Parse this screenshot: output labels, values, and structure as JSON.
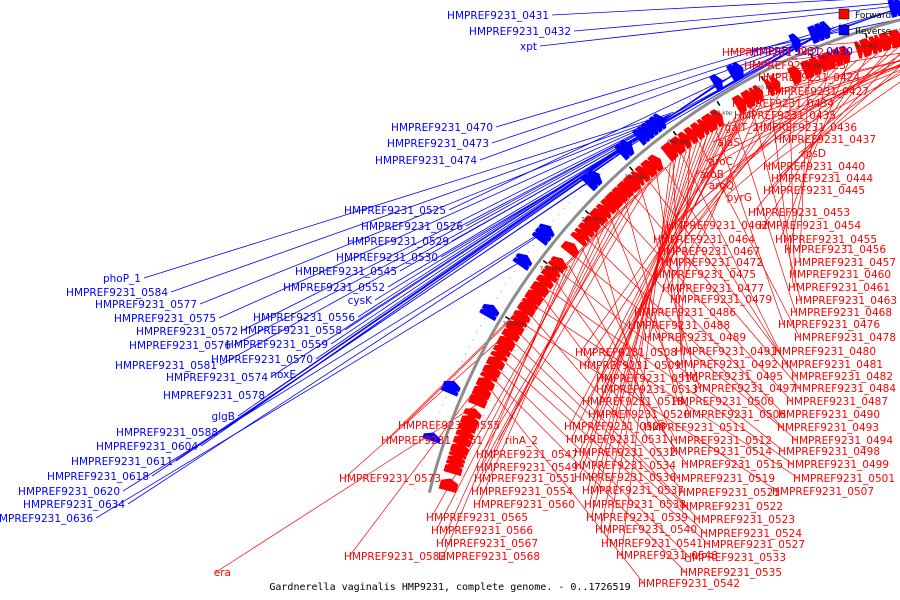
{
  "legend": {
    "forward": "Forward",
    "reverse": "Reverse",
    "forward_color": "#ff0000",
    "reverse_color": "#0000ff"
  },
  "caption": "Gardnerella vaginalis HMP9231, complete genome. - 0..1726519",
  "ticks": [
    "540 kbp",
    "560 kbp",
    "580 kbp",
    "600 kbp",
    "620 kbp",
    "640 kbp",
    "660 kbp",
    "680 kbp",
    "700 kbp",
    "720 kbp",
    "740 kbp",
    "760 kbp"
  ],
  "labels_reverse": [
    "HMPREF9231_0431",
    "HMPREF9231_0432",
    "xpt",
    "HMPREF9231_0430",
    "HMPREF9231_0470",
    "HMPREF9231_0473",
    "HMPREF9231_0474",
    "HMPREF9231_0525",
    "HMPREF9231_0526",
    "HMPREF9231_0529",
    "HMPREF9231_0530",
    "HMPREF9231_0545",
    "HMPREF9231_0552",
    "cysK",
    "HMPREF9231_0556",
    "HMPREF9231_0558",
    "HMPREF9231_0559",
    "HMPREF9231_0570",
    "noxE",
    "phoP_1",
    "HMPREF9231_0584",
    "HMPREF9231_0577",
    "HMPREF9231_0575",
    "HMPREF9231_0572",
    "HMPREF9231_0576",
    "HMPREF9231_0581",
    "HMPREF9231_0574",
    "HMPREF9231_0578",
    "glgB",
    "HMPREF9231_0588",
    "HMPREF9231_0604",
    "HMPREF9231_0611",
    "HMPREF9231_0618",
    "HMPREF9231_0620",
    "HMPREF9231_0634",
    "HMPREF9231_0636"
  ],
  "labels_forward_right": [
    "HMPREF9231_0422",
    "HMPREF9231_0423",
    "HMPREF9231_0424",
    "HMPREF9231_0427",
    "HMPREF9231_0434",
    "HMPREF9231_0435",
    "galT_2",
    "HMPREF9231_0436",
    "alaS",
    "HMPREF9231_0437",
    "rpsD",
    "aroC",
    "HMPREF9231_0440",
    "aroB",
    "HMPREF9231_0444",
    "aroQ",
    "HMPREF9231_0445",
    "pyrG",
    "HMPREF9231_0453",
    "HMPREF9231_0462",
    "HMPREF9231_0454",
    "HMPREF9231_0464",
    "HMPREF9231_0455",
    "HMPREF9231_0467",
    "HMPREF9231_0456",
    "HMPREF9231_0472",
    "HMPREF9231_0457",
    "HMPREF9231_0475",
    "HMPREF9231_0460",
    "HMPREF9231_0477",
    "HMPREF9231_0461",
    "HMPREF9231_0479",
    "HMPREF9231_0463",
    "HMPREF9231_0486",
    "HMPREF9231_0468",
    "HMPREF9231_0488",
    "HMPREF9231_0476",
    "HMPREF9231_0489",
    "HMPREF9231_0478",
    "HMPREF9231_0491",
    "HMPREF9231_0480",
    "HMPREF9231_0492",
    "HMPREF9231_0481",
    "HMPREF9231_0495",
    "HMPREF9231_0482",
    "HMPREF9231_0497",
    "HMPREF9231_0484",
    "HMPREF9231_0500",
    "HMPREF9231_0487",
    "HMPREF9231_0506",
    "HMPREF9231_0490",
    "HMPREF9231_0511",
    "HMPREF9231_0493",
    "HMPREF9231_0512",
    "HMPREF9231_0494",
    "HMPREF9231_0514",
    "HMPREF9231_0498",
    "HMPREF9231_0515",
    "HMPREF9231_0499",
    "HMPREF9231_0519",
    "HMPREF9231_0501",
    "HMPREF9231_0521",
    "HMPREF9231_0507",
    "HMPREF9231_0522",
    "HMPREF9231_0523",
    "HMPREF9231_0524",
    "HMPREF9231_0527",
    "HMPREF9231_0533",
    "HMPREF9231_0535",
    "HMPREF9231_0542"
  ],
  "labels_forward_mid": [
    "HMPREF9231_0508",
    "HMPREF9231_0509",
    "HMPREF9231_0510",
    "HMPREF9231_0513",
    "HMPREF9231_0518",
    "HMPREF9231_0520",
    "HMPREF9231_0528",
    "HMPREF9231_0531",
    "HMPREF9231_0532",
    "HMPREF9231_0534",
    "HMPREF9231_0536",
    "HMPREF9231_0537",
    "HMPREF9231_0538",
    "HMPREF9231_0539",
    "HMPREF9231_0540",
    "HMPREF9231_0541",
    "HMPREF9231_0548",
    "HMPREF9231_0555",
    "HMPREF9231_0561",
    "rihA_2",
    "HMPREF9231_0547",
    "HMPREF9231_0549",
    "HMPREF9231_0551",
    "HMPREF9231_0554",
    "HMPREF9231_0560",
    "HMPREF9231_0565",
    "HMPREF9231_0566",
    "HMPREF9231_0567",
    "HMPREF9231_0568",
    "HMPREF9231_0582",
    "HMPREF9231_0573",
    "era"
  ]
}
